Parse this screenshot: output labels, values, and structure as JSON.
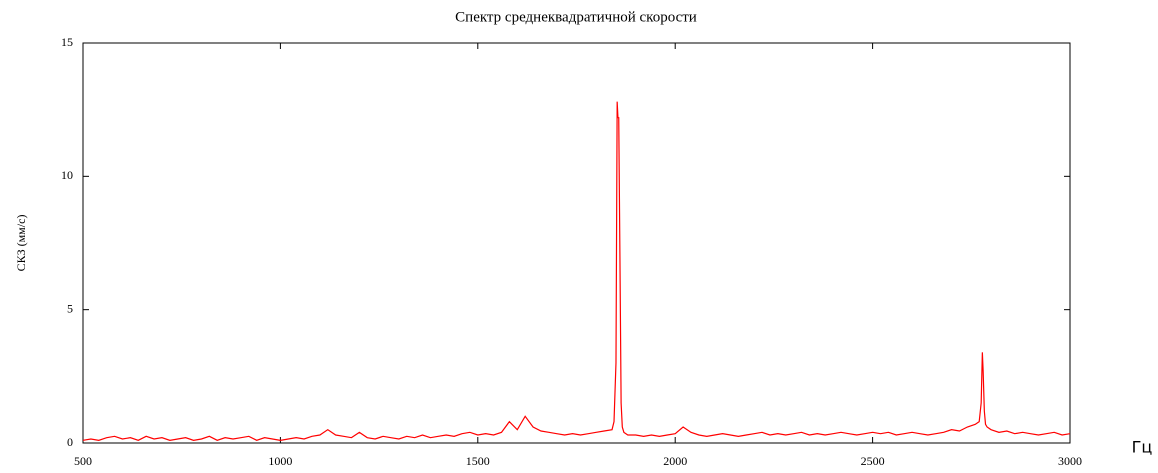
{
  "chart_data": {
    "type": "line",
    "title": "Спектр среднеквадратичной скорости",
    "y_label": "СКЗ (мм/с)",
    "x_label": "Гц",
    "x": [
      500,
      520,
      540,
      560,
      580,
      600,
      620,
      640,
      660,
      680,
      700,
      720,
      740,
      760,
      780,
      800,
      820,
      840,
      860,
      880,
      900,
      920,
      940,
      960,
      980,
      1000,
      1020,
      1040,
      1060,
      1080,
      1100,
      1120,
      1140,
      1160,
      1180,
      1200,
      1220,
      1240,
      1260,
      1280,
      1300,
      1320,
      1340,
      1360,
      1380,
      1400,
      1420,
      1440,
      1460,
      1480,
      1500,
      1520,
      1540,
      1560,
      1580,
      1600,
      1620,
      1640,
      1660,
      1680,
      1700,
      1720,
      1740,
      1760,
      1780,
      1800,
      1820,
      1840,
      1845,
      1850,
      1853,
      1855,
      1857,
      1860,
      1863,
      1866,
      1870,
      1880,
      1900,
      1920,
      1940,
      1960,
      1980,
      2000,
      2020,
      2040,
      2060,
      2080,
      2100,
      2120,
      2140,
      2160,
      2180,
      2200,
      2220,
      2240,
      2260,
      2280,
      2300,
      2320,
      2340,
      2360,
      2380,
      2400,
      2420,
      2440,
      2460,
      2480,
      2500,
      2520,
      2540,
      2560,
      2580,
      2600,
      2620,
      2640,
      2660,
      2680,
      2700,
      2720,
      2740,
      2760,
      2770,
      2775,
      2778,
      2780,
      2783,
      2786,
      2790,
      2800,
      2820,
      2840,
      2860,
      2880,
      2900,
      2920,
      2940,
      2960,
      2980,
      3000
    ],
    "series": [
      {
        "name": "СКЗ",
        "color": "#ff0000",
        "values": [
          0.1,
          0.15,
          0.1,
          0.2,
          0.25,
          0.15,
          0.2,
          0.1,
          0.25,
          0.15,
          0.2,
          0.1,
          0.15,
          0.2,
          0.1,
          0.15,
          0.25,
          0.1,
          0.2,
          0.15,
          0.2,
          0.25,
          0.1,
          0.2,
          0.15,
          0.1,
          0.15,
          0.2,
          0.15,
          0.25,
          0.3,
          0.5,
          0.3,
          0.25,
          0.2,
          0.4,
          0.2,
          0.15,
          0.25,
          0.2,
          0.15,
          0.25,
          0.2,
          0.3,
          0.2,
          0.25,
          0.3,
          0.25,
          0.35,
          0.4,
          0.3,
          0.35,
          0.3,
          0.4,
          0.8,
          0.5,
          1.0,
          0.6,
          0.45,
          0.4,
          0.35,
          0.3,
          0.35,
          0.3,
          0.35,
          0.4,
          0.45,
          0.5,
          0.8,
          3,
          12.8,
          12.2,
          12.2,
          7.0,
          1.5,
          0.6,
          0.4,
          0.3,
          0.3,
          0.25,
          0.3,
          0.25,
          0.3,
          0.35,
          0.6,
          0.4,
          0.3,
          0.25,
          0.3,
          0.35,
          0.3,
          0.25,
          0.3,
          0.35,
          0.4,
          0.3,
          0.35,
          0.3,
          0.35,
          0.4,
          0.3,
          0.35,
          0.3,
          0.35,
          0.4,
          0.35,
          0.3,
          0.35,
          0.4,
          0.35,
          0.4,
          0.3,
          0.35,
          0.4,
          0.35,
          0.3,
          0.35,
          0.4,
          0.5,
          0.45,
          0.6,
          0.7,
          0.8,
          1.5,
          3.4,
          2.7,
          1.2,
          0.7,
          0.6,
          0.5,
          0.4,
          0.45,
          0.35,
          0.4,
          0.35,
          0.3,
          0.35,
          0.4,
          0.3,
          0.35
        ]
      }
    ],
    "xlim": [
      500,
      3000
    ],
    "xticks": [
      500,
      1000,
      1500,
      2000,
      2500,
      3000
    ],
    "ylim": [
      0,
      15
    ],
    "yticks": [
      0,
      5,
      10,
      15
    ],
    "grid": false
  }
}
